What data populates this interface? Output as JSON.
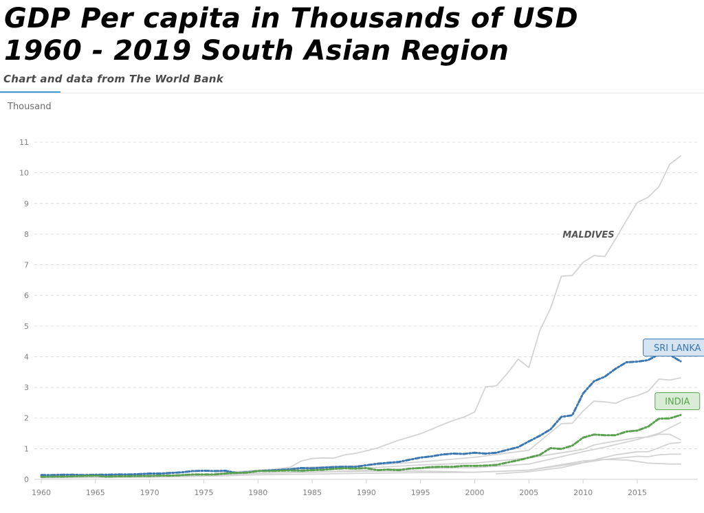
{
  "header": {
    "title_line1": "GDP Per capita in Thousands of USD",
    "title_line2": "1960 - 2019 South Asian Region",
    "subtitle": "Chart and data from The World Bank"
  },
  "chart_data": {
    "type": "line",
    "unit_label": "Thousand",
    "xlim": [
      1960,
      2019
    ],
    "ylim": [
      0,
      11
    ],
    "x_ticks": [
      1960,
      1965,
      1970,
      1975,
      1980,
      1985,
      1990,
      1995,
      2000,
      2005,
      2010,
      2015
    ],
    "y_ticks": [
      0,
      1,
      2,
      3,
      4,
      5,
      6,
      7,
      8,
      9,
      10,
      11
    ],
    "grid": "horizontal dashed",
    "colors": {
      "grey": "#d3d3d3",
      "sri_lanka": "#3a76b0",
      "india": "#5aa14f"
    },
    "series": [
      {
        "name": "MALDIVES",
        "style": "grey",
        "x": [
          1980,
          1981,
          1982,
          1983,
          1984,
          1985,
          1986,
          1987,
          1988,
          1989,
          1990,
          1991,
          1992,
          1993,
          1994,
          1995,
          1996,
          1997,
          1998,
          1999,
          2000,
          2001,
          2002,
          2003,
          2004,
          2005,
          2006,
          2007,
          2008,
          2009,
          2010,
          2011,
          2012,
          2013,
          2014,
          2015,
          2016,
          2017,
          2018,
          2019
        ],
        "values": [
          0.28,
          0.3,
          0.35,
          0.4,
          0.6,
          0.68,
          0.7,
          0.69,
          0.8,
          0.85,
          0.93,
          1.02,
          1.15,
          1.28,
          1.38,
          1.49,
          1.63,
          1.78,
          1.92,
          2.03,
          2.2,
          3.02,
          3.05,
          3.45,
          3.92,
          3.65,
          4.85,
          5.58,
          6.63,
          6.65,
          7.08,
          7.3,
          7.27,
          7.84,
          8.45,
          9.03,
          9.2,
          9.55,
          10.28,
          10.55
        ]
      },
      {
        "name": "",
        "style": "grey",
        "x": [
          1976,
          1980,
          1985,
          1990,
          1995,
          2000,
          2005,
          2008,
          2009,
          2010,
          2011,
          2012,
          2013,
          2014,
          2015,
          2016,
          2017,
          2018,
          2019
        ],
        "values": [
          0.2,
          0.3,
          0.4,
          0.45,
          0.57,
          0.72,
          0.95,
          1.82,
          1.83,
          2.23,
          2.55,
          2.53,
          2.48,
          2.64,
          2.73,
          2.87,
          3.27,
          3.24,
          3.31
        ]
      },
      {
        "name": "",
        "style": "grey",
        "x": [
          1960,
          1965,
          1970,
          1975,
          1980,
          1985,
          1990,
          1995,
          2000,
          2005,
          2010,
          2012,
          2015,
          2017,
          2018,
          2019
        ],
        "values": [
          0.09,
          0.11,
          0.13,
          0.15,
          0.2,
          0.23,
          0.3,
          0.36,
          0.38,
          0.5,
          0.9,
          1.05,
          1.3,
          1.5,
          1.68,
          1.86
        ]
      },
      {
        "name": "",
        "style": "grey",
        "x": [
          1960,
          1965,
          1970,
          1975,
          1980,
          1985,
          1990,
          1995,
          2000,
          2005,
          2010,
          2011,
          2012,
          2015,
          2016,
          2017,
          2018,
          2019
        ],
        "values": [
          0.08,
          0.1,
          0.16,
          0.12,
          0.3,
          0.34,
          0.37,
          0.47,
          0.53,
          0.7,
          0.98,
          1.12,
          1.19,
          1.36,
          1.38,
          1.47,
          1.47,
          1.29
        ]
      },
      {
        "name": "",
        "style": "grey",
        "x": [
          1960,
          1965,
          1970,
          1975,
          1980,
          1985,
          1990,
          1995,
          2000,
          2005,
          2010,
          2013,
          2015,
          2016,
          2017,
          2018,
          2019
        ],
        "values": [
          0.06,
          0.07,
          0.09,
          0.12,
          0.2,
          0.24,
          0.26,
          0.27,
          0.23,
          0.3,
          0.55,
          0.8,
          0.9,
          0.9,
          1.03,
          1.17,
          1.2
        ]
      },
      {
        "name": "",
        "style": "grey",
        "x": [
          1960,
          1965,
          1970,
          1975,
          1980,
          1985,
          1990,
          1995,
          2000,
          2005,
          2010,
          2012,
          2015,
          2016,
          2017,
          2018,
          2019
        ],
        "values": [
          0.05,
          0.06,
          0.07,
          0.1,
          0.15,
          0.17,
          0.2,
          0.22,
          0.23,
          0.3,
          0.6,
          0.65,
          0.75,
          0.74,
          0.8,
          0.82,
          0.82
        ]
      },
      {
        "name": "",
        "style": "grey",
        "x": [
          2002,
          2005,
          2008,
          2010,
          2012,
          2014,
          2016,
          2018,
          2019
        ],
        "values": [
          0.18,
          0.25,
          0.38,
          0.54,
          0.65,
          0.63,
          0.53,
          0.5,
          0.5
        ]
      },
      {
        "name": "SRI LANKA",
        "style": "sri_lanka",
        "x": [
          1960,
          1961,
          1962,
          1963,
          1964,
          1965,
          1966,
          1967,
          1968,
          1969,
          1970,
          1971,
          1972,
          1973,
          1974,
          1975,
          1976,
          1977,
          1978,
          1979,
          1980,
          1981,
          1982,
          1983,
          1984,
          1985,
          1986,
          1987,
          1988,
          1989,
          1990,
          1991,
          1992,
          1993,
          1994,
          1995,
          1996,
          1997,
          1998,
          1999,
          2000,
          2001,
          2002,
          2003,
          2004,
          2005,
          2006,
          2007,
          2008,
          2009,
          2010,
          2011,
          2012,
          2013,
          2014,
          2015,
          2016,
          2017,
          2018,
          2019
        ],
        "values": [
          0.14,
          0.14,
          0.15,
          0.15,
          0.14,
          0.15,
          0.15,
          0.16,
          0.16,
          0.17,
          0.19,
          0.19,
          0.21,
          0.23,
          0.27,
          0.28,
          0.27,
          0.28,
          0.21,
          0.23,
          0.27,
          0.29,
          0.31,
          0.33,
          0.37,
          0.36,
          0.38,
          0.4,
          0.41,
          0.41,
          0.46,
          0.51,
          0.54,
          0.57,
          0.64,
          0.71,
          0.75,
          0.81,
          0.84,
          0.83,
          0.87,
          0.84,
          0.87,
          0.96,
          1.05,
          1.24,
          1.42,
          1.63,
          2.04,
          2.09,
          2.8,
          3.2,
          3.35,
          3.61,
          3.82,
          3.84,
          3.89,
          4.08,
          4.06,
          3.85
        ]
      },
      {
        "name": "INDIA",
        "style": "india",
        "x": [
          1960,
          1961,
          1962,
          1963,
          1964,
          1965,
          1966,
          1967,
          1968,
          1969,
          1970,
          1971,
          1972,
          1973,
          1974,
          1975,
          1976,
          1977,
          1978,
          1979,
          1980,
          1981,
          1982,
          1983,
          1984,
          1985,
          1986,
          1987,
          1988,
          1989,
          1990,
          1991,
          1992,
          1993,
          1994,
          1995,
          1996,
          1997,
          1998,
          1999,
          2000,
          2001,
          2002,
          2003,
          2004,
          2005,
          2006,
          2007,
          2008,
          2009,
          2010,
          2011,
          2012,
          2013,
          2014,
          2015,
          2016,
          2017,
          2018,
          2019
        ],
        "values": [
          0.08,
          0.09,
          0.09,
          0.1,
          0.11,
          0.12,
          0.09,
          0.1,
          0.1,
          0.11,
          0.11,
          0.12,
          0.12,
          0.14,
          0.16,
          0.16,
          0.16,
          0.19,
          0.21,
          0.22,
          0.27,
          0.27,
          0.28,
          0.29,
          0.28,
          0.3,
          0.31,
          0.34,
          0.36,
          0.35,
          0.37,
          0.3,
          0.32,
          0.3,
          0.35,
          0.37,
          0.4,
          0.41,
          0.41,
          0.44,
          0.44,
          0.45,
          0.47,
          0.55,
          0.62,
          0.71,
          0.8,
          1.02,
          0.99,
          1.1,
          1.36,
          1.46,
          1.44,
          1.44,
          1.56,
          1.59,
          1.72,
          1.98,
          1.99,
          2.1
        ]
      }
    ],
    "annotations": [
      {
        "text": "MALDIVES",
        "series": "MALDIVES",
        "x": 2010.5,
        "y": 8.0,
        "boxed": false
      },
      {
        "text": "SRI LANKA",
        "series": "SRI LANKA",
        "x": 2018.7,
        "y": 4.3,
        "boxed": true
      },
      {
        "text": "INDIA",
        "series": "INDIA",
        "x": 2018.7,
        "y": 2.55,
        "boxed": true
      }
    ]
  }
}
